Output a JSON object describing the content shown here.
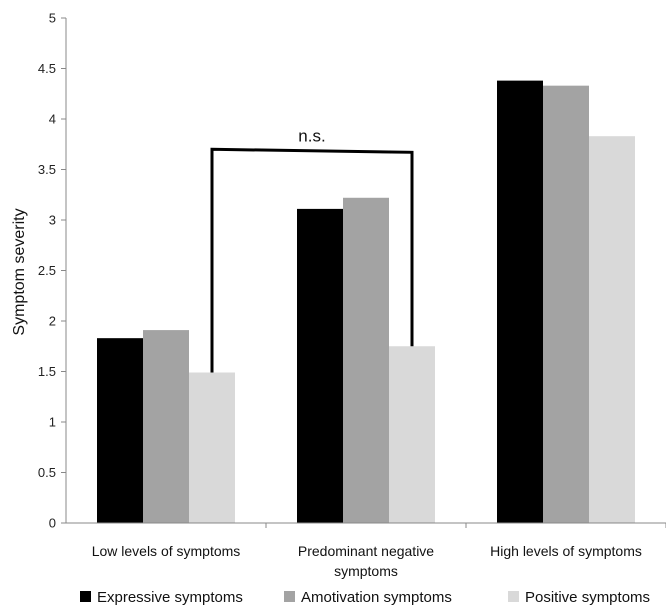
{
  "chart_data": {
    "type": "bar",
    "title": "",
    "xlabel": "",
    "ylabel": "Symptom severity",
    "ylim": [
      0,
      5
    ],
    "yticks": [
      "0",
      "0.5",
      "1",
      "1.5",
      "2",
      "2.5",
      "3",
      "3.5",
      "4",
      "4.5",
      "5"
    ],
    "ytick_values": [
      0,
      0.5,
      1,
      1.5,
      2,
      2.5,
      3,
      3.5,
      4,
      4.5,
      5
    ],
    "grid": false,
    "legend_position": "bottom",
    "categories": [
      [
        "Low levels of symptoms"
      ],
      [
        "Predominant negative",
        "symptoms"
      ],
      [
        "High levels of symptoms"
      ]
    ],
    "series": [
      {
        "name": "Expressive symptoms",
        "color": "#000000",
        "values": [
          1.83,
          3.11,
          4.38
        ]
      },
      {
        "name": "Amotivation symptoms",
        "color": "#a3a3a3",
        "values": [
          1.91,
          3.22,
          4.33
        ]
      },
      {
        "name": "Positive symptoms",
        "color": "#d9d9d9",
        "values": [
          1.49,
          1.75,
          3.83
        ]
      }
    ],
    "annotations": [
      {
        "text": "n.s.",
        "type": "bracket",
        "from": [
          0,
          2
        ],
        "to": [
          1,
          2
        ],
        "bracket_y": 3.7
      }
    ]
  }
}
